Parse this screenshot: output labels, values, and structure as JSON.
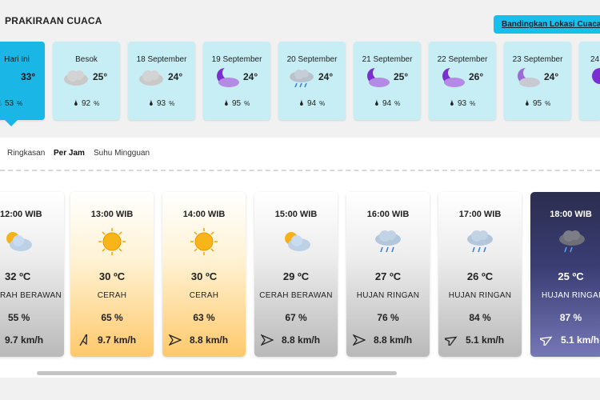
{
  "header": {
    "title": "PRAKIRAAN CUACA",
    "compare_label": "Bandingkan Lokasi Cuaca"
  },
  "days": [
    {
      "label": "Hari Ini",
      "temp": "33°",
      "humidity": "53",
      "unit": "%",
      "icon": "partly-sunny-icon",
      "active": true
    },
    {
      "label": "Besok",
      "temp": "25°",
      "humidity": "92",
      "unit": "%",
      "icon": "cloud-icon"
    },
    {
      "label": "18 September",
      "temp": "24°",
      "humidity": "93",
      "unit": "%",
      "icon": "cloud-icon"
    },
    {
      "label": "19 September",
      "temp": "24°",
      "humidity": "95",
      "unit": "%",
      "icon": "moon-cloud-icon"
    },
    {
      "label": "20 September",
      "temp": "24°",
      "humidity": "94",
      "unit": "%",
      "icon": "rain-cloud-icon"
    },
    {
      "label": "21 September",
      "temp": "25°",
      "humidity": "94",
      "unit": "%",
      "icon": "moon-cloud-icon"
    },
    {
      "label": "22 September",
      "temp": "26°",
      "humidity": "93",
      "unit": "%",
      "icon": "moon-cloud-icon"
    },
    {
      "label": "23 September",
      "temp": "24°",
      "humidity": "95",
      "unit": "%",
      "icon": "moon-cloud-icon"
    },
    {
      "label": "24",
      "temp": "",
      "humidity": "",
      "unit": "",
      "icon": "moon-cloud-icon"
    }
  ],
  "tabs": [
    {
      "label": "Ringkasan"
    },
    {
      "label": "Per Jam",
      "active": true
    },
    {
      "label": "Suhu Mingguan"
    }
  ],
  "hours": [
    {
      "time": "12:00 WIB",
      "temp": "32 ºC",
      "condition": "RAH BERAWAN",
      "humidity": "55 %",
      "wind": "9.7 km/h",
      "style": "gray",
      "icon": "partly-sunny-icon"
    },
    {
      "time": "13:00 WIB",
      "temp": "30 ºC",
      "condition": "CERAH",
      "humidity": "65 %",
      "wind": "9.7 km/h",
      "style": "sunny",
      "icon": "sun-icon"
    },
    {
      "time": "14:00 WIB",
      "temp": "30 ºC",
      "condition": "CERAH",
      "humidity": "63 %",
      "wind": "8.8 km/h",
      "style": "sunny",
      "icon": "sun-icon"
    },
    {
      "time": "15:00 WIB",
      "temp": "29 ºC",
      "condition": "CERAH BERAWAN",
      "humidity": "67 %",
      "wind": "8.8 km/h",
      "style": "gray",
      "icon": "partly-sunny-icon"
    },
    {
      "time": "16:00 WIB",
      "temp": "27 ºC",
      "condition": "HUJAN RINGAN",
      "humidity": "76 %",
      "wind": "8.8 km/h",
      "style": "gray",
      "icon": "rain-cloud-icon"
    },
    {
      "time": "17:00 WIB",
      "temp": "26 ºC",
      "condition": "HUJAN RINGAN",
      "humidity": "84 %",
      "wind": "5.1 km/h",
      "style": "gray",
      "icon": "rain-cloud-icon"
    },
    {
      "time": "18:00 WIB",
      "temp": "25 ºC",
      "condition": "HUJAN RINGAN",
      "humidity": "87 %",
      "wind": "5.1 km/h",
      "style": "night",
      "icon": "rain-cloud-icon"
    }
  ]
}
